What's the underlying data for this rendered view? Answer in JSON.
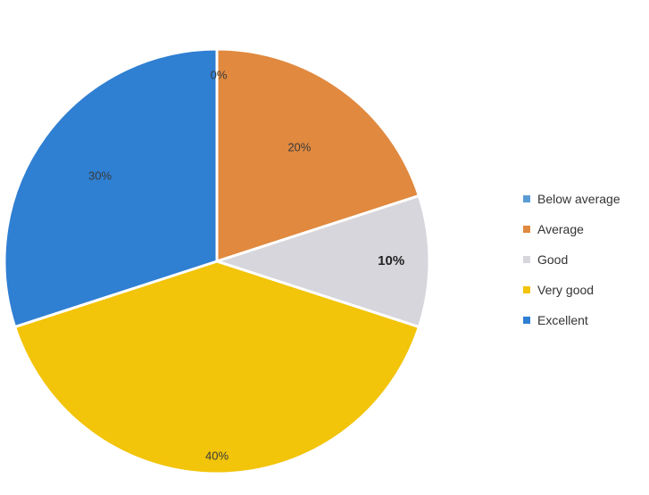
{
  "chart_data": {
    "type": "pie",
    "title": "",
    "categories": [
      "Below average",
      "Average",
      "Good",
      "Very good",
      "Excellent"
    ],
    "values": [
      0,
      20,
      10,
      40,
      30
    ],
    "labels": [
      "0%",
      "20%",
      "10%",
      "40%",
      "30%"
    ],
    "colors": [
      "#5b9bd5",
      "#e0893f",
      "#d6d6dc",
      "#f2c40a",
      "#2f7fd2"
    ],
    "start_angle_deg": 0,
    "direction": "clockwise",
    "legend": {
      "position": "right",
      "items": [
        "Below average",
        "Average",
        "Good",
        "Very good",
        "Excellent"
      ]
    }
  }
}
